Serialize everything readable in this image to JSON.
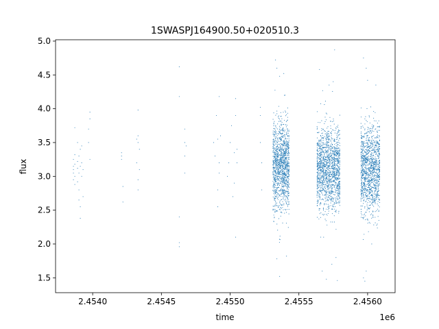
{
  "chart_data": {
    "type": "scatter",
    "title": "1SWASPJ164900.50+020510.3",
    "xlabel": "time",
    "ylabel": "flux",
    "x_offset_label": "1e6",
    "xlim": [
      2.45373,
      2.4562
    ],
    "ylim": [
      1.28,
      5.02
    ],
    "x_ticks": [
      2.454,
      2.4545,
      2.455,
      2.4555,
      2.456
    ],
    "x_tick_labels": [
      "2.4540",
      "2.4545",
      "2.4550",
      "2.4555",
      "2.4560"
    ],
    "y_ticks": [
      1.5,
      2.0,
      2.5,
      3.0,
      3.5,
      4.0,
      4.5,
      5.0
    ],
    "y_tick_labels": [
      "1.5",
      "2.0",
      "2.5",
      "3.0",
      "3.5",
      "4.0",
      "4.5",
      "5.0"
    ],
    "grid": false,
    "legend": "none",
    "point_color": "#1f77b4",
    "series": [
      {
        "points": [
          [
            2.45386,
            3.1
          ],
          [
            2.45386,
            3.25
          ],
          [
            2.45386,
            2.95
          ],
          [
            2.45386,
            3.05
          ],
          [
            2.45387,
            3.18
          ],
          [
            2.45387,
            3.0
          ],
          [
            2.45387,
            2.88
          ],
          [
            2.45387,
            3.32
          ],
          [
            2.45386,
            3.15
          ],
          [
            2.45387,
            3.72
          ],
          [
            2.45389,
            3.12
          ],
          [
            2.45389,
            3.22
          ],
          [
            2.45389,
            2.92
          ],
          [
            2.4539,
            3.05
          ],
          [
            2.4539,
            3.3
          ],
          [
            2.4539,
            2.8
          ],
          [
            2.45391,
            3.15
          ],
          [
            2.45391,
            3.4
          ],
          [
            2.45391,
            2.55
          ],
          [
            2.45391,
            2.38
          ],
          [
            2.45392,
            3.2
          ],
          [
            2.45392,
            3.0
          ],
          [
            2.45392,
            3.45
          ],
          [
            2.45393,
            2.7
          ],
          [
            2.45393,
            3.1
          ],
          [
            2.45389,
            3.5
          ],
          [
            2.4539,
            2.65
          ],
          [
            2.45397,
            3.5
          ],
          [
            2.45397,
            3.7
          ],
          [
            2.45398,
            3.85
          ],
          [
            2.45398,
            3.95
          ],
          [
            2.45398,
            3.25
          ],
          [
            2.45421,
            3.25
          ],
          [
            2.45421,
            3.3
          ],
          [
            2.45422,
            2.85
          ],
          [
            2.45422,
            2.62
          ],
          [
            2.45421,
            3.35
          ],
          [
            2.45432,
            3.55
          ],
          [
            2.45432,
            3.2
          ],
          [
            2.45433,
            2.95
          ],
          [
            2.45433,
            2.8
          ],
          [
            2.45433,
            3.6
          ],
          [
            2.45433,
            3.98
          ],
          [
            2.45434,
            3.4
          ],
          [
            2.45434,
            3.1
          ],
          [
            2.45433,
            3.5
          ],
          [
            2.45463,
            4.62
          ],
          [
            2.45463,
            4.18
          ],
          [
            2.45463,
            2.4
          ],
          [
            2.45463,
            2.02
          ],
          [
            2.45463,
            1.96
          ],
          [
            2.45467,
            3.5
          ],
          [
            2.45467,
            3.3
          ],
          [
            2.45467,
            3.05
          ],
          [
            2.45467,
            3.7
          ],
          [
            2.45468,
            3.45
          ],
          [
            2.45488,
            3.5
          ],
          [
            2.45489,
            3.3
          ],
          [
            2.4549,
            3.9
          ],
          [
            2.45491,
            3.55
          ],
          [
            2.45491,
            2.8
          ],
          [
            2.45492,
            3.2
          ],
          [
            2.45492,
            4.18
          ],
          [
            2.45491,
            2.55
          ],
          [
            2.45493,
            3.6
          ],
          [
            2.45492,
            3.05
          ],
          [
            2.45498,
            3.0
          ],
          [
            2.45499,
            3.2
          ],
          [
            2.455,
            3.5
          ],
          [
            2.45501,
            3.75
          ],
          [
            2.45502,
            2.7
          ],
          [
            2.45503,
            3.35
          ],
          [
            2.45504,
            4.15
          ],
          [
            2.45504,
            3.9
          ],
          [
            2.45505,
            3.4
          ],
          [
            2.45505,
            3.2
          ],
          [
            2.45504,
            2.1
          ],
          [
            2.45503,
            2.9
          ],
          [
            2.45522,
            3.5
          ],
          [
            2.45522,
            3.9
          ],
          [
            2.45523,
            3.2
          ],
          [
            2.45523,
            2.8
          ],
          [
            2.45522,
            4.02
          ]
        ]
      },
      {
        "clusters": [
          {
            "x": [
              2.45531,
              2.45543
            ],
            "y_center": 3.15,
            "y_sd": 0.32,
            "count": 1300
          },
          {
            "x": [
              2.45563,
              2.4558
            ],
            "y_center": 3.12,
            "y_sd": 0.3,
            "count": 1600
          },
          {
            "x": [
              2.45595,
              2.45609
            ],
            "y_center": 3.08,
            "y_sd": 0.33,
            "count": 1300
          }
        ],
        "outliers": [
          [
            2.45533,
            4.72
          ],
          [
            2.45534,
            4.6
          ],
          [
            2.45536,
            4.48
          ],
          [
            2.45539,
            4.52
          ],
          [
            2.4554,
            4.2
          ],
          [
            2.45536,
            1.52
          ],
          [
            2.45534,
            1.78
          ],
          [
            2.45541,
            1.82
          ],
          [
            2.45565,
            4.58
          ],
          [
            2.45568,
            2.1
          ],
          [
            2.45567,
            1.6
          ],
          [
            2.4557,
            1.48
          ],
          [
            2.45575,
            4.4
          ],
          [
            2.45576,
            4.87
          ],
          [
            2.45578,
            1.46
          ],
          [
            2.45577,
            1.8
          ],
          [
            2.45574,
            1.7
          ],
          [
            2.45572,
            4.35
          ],
          [
            2.45597,
            4.75
          ],
          [
            2.45599,
            4.6
          ],
          [
            2.456,
            4.42
          ],
          [
            2.45597,
            1.5
          ],
          [
            2.45599,
            1.6
          ],
          [
            2.45598,
            1.45
          ],
          [
            2.45606,
            4.35
          ],
          [
            2.45603,
            2.0
          ]
        ]
      }
    ]
  }
}
